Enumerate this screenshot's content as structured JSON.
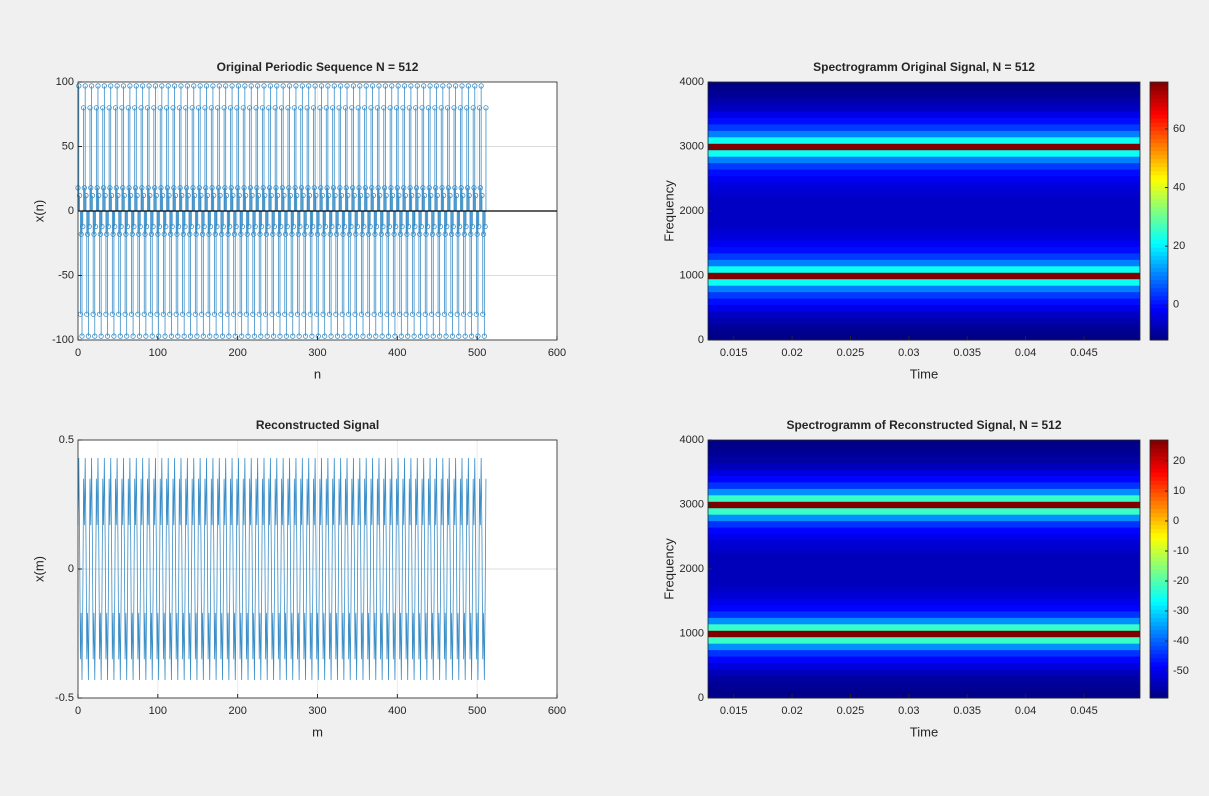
{
  "chart_data": [
    {
      "type": "stem",
      "title": "Original Periodic Sequence  N = 512",
      "xlabel": "n",
      "ylabel": "x(n)",
      "color": "#3a8ec8",
      "xlim": [
        0,
        600
      ],
      "xticks": [
        0,
        100,
        200,
        300,
        400,
        500,
        600
      ],
      "ylim": [
        -100,
        100
      ],
      "yticks": [
        -100,
        -50,
        0,
        50,
        100
      ],
      "grid": true,
      "values": [
        18,
        97,
        12,
        -80,
        -18,
        -97,
        -12,
        80,
        18,
        97,
        12,
        -80,
        -18,
        -97,
        -12,
        80,
        18,
        97,
        12,
        -80,
        -18,
        -97,
        -12,
        80,
        18,
        97,
        12,
        -80,
        -18,
        -97,
        -12,
        80,
        18,
        97,
        12,
        -80,
        -18,
        -97,
        -12,
        80,
        18,
        97,
        12,
        -80,
        -18,
        -97,
        -12,
        80,
        18,
        97,
        12,
        -80,
        -18,
        -97,
        -12,
        80,
        18,
        97,
        12,
        -80,
        -18,
        -97,
        -12,
        80,
        18,
        97,
        12,
        -80,
        -18,
        -97,
        -12,
        80,
        18,
        97,
        12,
        -80,
        -18,
        -97,
        -12,
        80,
        18,
        97,
        12,
        -80,
        -18,
        -97,
        -12,
        80,
        18,
        97,
        12,
        -80,
        -18,
        -97,
        -12,
        80,
        18,
        97,
        12,
        -80,
        -18,
        -97,
        -12,
        80,
        18,
        97,
        12,
        -80,
        -18,
        -97,
        -12,
        80,
        18,
        97,
        12,
        -80,
        -18,
        -97,
        -12,
        80,
        18,
        97,
        12,
        -80,
        -18,
        -97,
        -12,
        80,
        18,
        97,
        12,
        -80,
        -18,
        -97,
        -12,
        80,
        18,
        97,
        12,
        -80,
        -18,
        -97,
        -12,
        80,
        18,
        97,
        12,
        -80,
        -18,
        -97,
        -12,
        80,
        18,
        97,
        12,
        -80,
        -18,
        -97,
        -12,
        80,
        18,
        97,
        12,
        -80,
        -18,
        -97,
        -12,
        80,
        18,
        97,
        12,
        -80,
        -18,
        -97,
        -12,
        80,
        18,
        97,
        12,
        -80,
        -18,
        -97,
        -12,
        80,
        18,
        97,
        12,
        -80,
        -18,
        -97,
        -12,
        80,
        18,
        97,
        12,
        -80,
        -18,
        -97,
        -12,
        80,
        18,
        97,
        12,
        -80,
        -18,
        -97,
        -12,
        80,
        18,
        97,
        12,
        -80,
        -18,
        -97,
        -12,
        80,
        18,
        97,
        12,
        -80,
        -18,
        -97,
        -12,
        80,
        18,
        97,
        12,
        -80,
        -18,
        -97,
        -12,
        80,
        18,
        97,
        12,
        -80,
        -18,
        -97,
        -12,
        80,
        18,
        97,
        12,
        -80,
        -18,
        -97,
        -12,
        80,
        18,
        97,
        12,
        -80,
        -18,
        -97,
        -12,
        80,
        18,
        97,
        12,
        -80,
        -18,
        -97,
        -12,
        80,
        18,
        97,
        12,
        -80,
        -18,
        -97,
        -12,
        80,
        18,
        97,
        12,
        -80,
        -18,
        -97,
        -12,
        80,
        18,
        97,
        12,
        -80,
        -18,
        -97,
        -12,
        80,
        18,
        97,
        12,
        -80,
        -18,
        -97,
        -12,
        80,
        18,
        97,
        12,
        -80,
        -18,
        -97,
        -12,
        80,
        18,
        97,
        12,
        -80,
        -18,
        -97,
        -12,
        80,
        18,
        97,
        12,
        -80,
        -18,
        -97,
        -12,
        80,
        18,
        97,
        12,
        -80,
        -18,
        -97,
        -12,
        80,
        18,
        97,
        12,
        -80,
        -18,
        -97,
        -12,
        80,
        18,
        97,
        12,
        -80,
        -18,
        -97,
        -12,
        80,
        18,
        97,
        12,
        -80,
        -18,
        -97,
        -12,
        80,
        18,
        97,
        12,
        -80,
        -18,
        -97,
        -12,
        80,
        18,
        97,
        12,
        -80,
        -18,
        -97,
        -12,
        80,
        18,
        97,
        12,
        -80,
        -18,
        -97,
        -12,
        80,
        18,
        97,
        12,
        -80,
        -18,
        -97,
        -12,
        80,
        18,
        97,
        12,
        -80,
        -18,
        -97,
        -12,
        80,
        18,
        97,
        12,
        -80,
        -18,
        -97,
        -12,
        80,
        18,
        97,
        12,
        -80,
        -18,
        -97,
        -12,
        80,
        18,
        97,
        12,
        -80,
        -18,
        -97,
        -12,
        80,
        18,
        97,
        12,
        -80,
        -18,
        -97,
        -12,
        80,
        18,
        97,
        12,
        -80,
        -18,
        -97,
        -12,
        80,
        18,
        97,
        12,
        -80,
        -18,
        -97,
        -12,
        80,
        18,
        97,
        12,
        -80,
        -18,
        -97,
        -12,
        80,
        18,
        97,
        12,
        -80,
        -18,
        -97,
        -12,
        80,
        18,
        97,
        12,
        -80,
        -18,
        -97,
        -12,
        80,
        18,
        97,
        12,
        -80,
        -18,
        -97,
        -12,
        80,
        18,
        97,
        12,
        -80,
        -18,
        -97,
        -12,
        80,
        18,
        97,
        12,
        -80,
        -18,
        -97,
        -12,
        80,
        18,
        97,
        12,
        -80,
        -18,
        -97,
        -12,
        80,
        18,
        97,
        12,
        -80,
        -18,
        -97,
        -12,
        80,
        18,
        97,
        12,
        -80,
        -18,
        -97,
        -12,
        80
      ]
    },
    {
      "type": "heatmap",
      "title": "Spectrogramm Original Signal, N = 512",
      "xlabel": "Time",
      "ylabel": "Frequency",
      "xlim": [
        0.0128,
        0.0498
      ],
      "xticks": [
        0.015,
        0.02,
        0.025,
        0.03,
        0.035,
        0.04,
        0.045
      ],
      "ylim": [
        0,
        4000
      ],
      "yticks": [
        0,
        1000,
        2000,
        3000,
        4000
      ],
      "clim": [
        -12,
        76
      ],
      "cticks": [
        0,
        20,
        40,
        60
      ],
      "colormap": "jet",
      "y": [
        0,
        100,
        200,
        300,
        400,
        500,
        600,
        700,
        800,
        900,
        1000,
        1100,
        1200,
        1300,
        1400,
        1500,
        1600,
        1700,
        1800,
        1900,
        2000,
        2100,
        2200,
        2300,
        2400,
        2500,
        2600,
        2700,
        2800,
        2900,
        3000,
        3100,
        3200,
        3300,
        3400,
        3500,
        3600,
        3700,
        3800,
        3900,
        4000
      ],
      "values": [
        -12,
        -11,
        -10,
        -8,
        -6,
        -3,
        0,
        4,
        10,
        22,
        76,
        22,
        10,
        4,
        0,
        -2,
        -4,
        -5,
        -6,
        -6,
        -6,
        -6,
        -6,
        -5,
        -4,
        -2,
        0,
        4,
        10,
        22,
        76,
        22,
        10,
        4,
        0,
        -3,
        -6,
        -8,
        -10,
        -11,
        -12
      ]
    },
    {
      "type": "line",
      "title": "Reconstructed Signal",
      "xlabel": "m",
      "ylabel": "x(m)",
      "color": "#3a8ec8",
      "xlim": [
        0,
        600
      ],
      "xticks": [
        0,
        100,
        200,
        300,
        400,
        500,
        600
      ],
      "ylim": [
        -0.5,
        0.5
      ],
      "yticks": [
        -0.5,
        0,
        0.5
      ],
      "grid": true,
      "values": [
        0.17,
        0.43,
        0.12,
        -0.35,
        -0.17,
        -0.43,
        -0.12,
        0.35,
        0.17,
        0.43,
        0.12,
        -0.35,
        -0.17,
        -0.43,
        -0.12,
        0.35,
        0.17,
        0.43,
        0.12,
        -0.35,
        -0.17,
        -0.43,
        -0.12,
        0.35,
        0.17,
        0.43,
        0.12,
        -0.35,
        -0.17,
        -0.43,
        -0.12,
        0.35,
        0.17,
        0.43,
        0.12,
        -0.35,
        -0.17,
        -0.43,
        -0.12,
        0.35,
        0.17,
        0.43,
        0.12,
        -0.35,
        -0.17,
        -0.43,
        -0.12,
        0.35,
        0.17,
        0.43,
        0.12,
        -0.35,
        -0.17,
        -0.43,
        -0.12,
        0.35,
        0.17,
        0.43,
        0.12,
        -0.35,
        -0.17,
        -0.43,
        -0.12,
        0.35,
        0.17,
        0.43,
        0.12,
        -0.35,
        -0.17,
        -0.43,
        -0.12,
        0.35,
        0.17,
        0.43,
        0.12,
        -0.35,
        -0.17,
        -0.43,
        -0.12,
        0.35,
        0.17,
        0.43,
        0.12,
        -0.35,
        -0.17,
        -0.43,
        -0.12,
        0.35,
        0.17,
        0.43,
        0.12,
        -0.35,
        -0.17,
        -0.43,
        -0.12,
        0.35,
        0.17,
        0.43,
        0.12,
        -0.35,
        -0.17,
        -0.43,
        -0.12,
        0.35,
        0.17,
        0.43,
        0.12,
        -0.35,
        -0.17,
        -0.43,
        -0.12,
        0.35,
        0.17,
        0.43,
        0.12,
        -0.35,
        -0.17,
        -0.43,
        -0.12,
        0.35,
        0.17,
        0.43,
        0.12,
        -0.35,
        -0.17,
        -0.43,
        -0.12,
        0.35,
        0.17,
        0.43,
        0.12,
        -0.35,
        -0.17,
        -0.43,
        -0.12,
        0.35,
        0.17,
        0.43,
        0.12,
        -0.35,
        -0.17,
        -0.43,
        -0.12,
        0.35,
        0.17,
        0.43,
        0.12,
        -0.35,
        -0.17,
        -0.43,
        -0.12,
        0.35,
        0.17,
        0.43,
        0.12,
        -0.35,
        -0.17,
        -0.43,
        -0.12,
        0.35,
        0.17,
        0.43,
        0.12,
        -0.35,
        -0.17,
        -0.43,
        -0.12,
        0.35,
        0.17,
        0.43,
        0.12,
        -0.35,
        -0.17,
        -0.43,
        -0.12,
        0.35,
        0.17,
        0.43,
        0.12,
        -0.35,
        -0.17,
        -0.43,
        -0.12,
        0.35,
        0.17,
        0.43,
        0.12,
        -0.35,
        -0.17,
        -0.43,
        -0.12,
        0.35,
        0.17,
        0.43,
        0.12,
        -0.35,
        -0.17,
        -0.43,
        -0.12,
        0.35,
        0.17,
        0.43,
        0.12,
        -0.35,
        -0.17,
        -0.43,
        -0.12,
        0.35,
        0.17,
        0.43,
        0.12,
        -0.35,
        -0.17,
        -0.43,
        -0.12,
        0.35,
        0.17,
        0.43,
        0.12,
        -0.35,
        -0.17,
        -0.43,
        -0.12,
        0.35,
        0.17,
        0.43,
        0.12,
        -0.35,
        -0.17,
        -0.43,
        -0.12,
        0.35,
        0.17,
        0.43,
        0.12,
        -0.35,
        -0.17,
        -0.43,
        -0.12,
        0.35,
        0.17,
        0.43,
        0.12,
        -0.35,
        -0.17,
        -0.43,
        -0.12,
        0.35,
        0.17,
        0.43,
        0.12,
        -0.35,
        -0.17,
        -0.43,
        -0.12,
        0.35,
        0.17,
        0.43,
        0.12,
        -0.35,
        -0.17,
        -0.43,
        -0.12,
        0.35,
        0.17,
        0.43,
        0.12,
        -0.35,
        -0.17,
        -0.43,
        -0.12,
        0.35,
        0.17,
        0.43,
        0.12,
        -0.35,
        -0.17,
        -0.43,
        -0.12,
        0.35,
        0.17,
        0.43,
        0.12,
        -0.35,
        -0.17,
        -0.43,
        -0.12,
        0.35,
        0.17,
        0.43,
        0.12,
        -0.35,
        -0.17,
        -0.43,
        -0.12,
        0.35,
        0.17,
        0.43,
        0.12,
        -0.35,
        -0.17,
        -0.43,
        -0.12,
        0.35,
        0.17,
        0.43,
        0.12,
        -0.35,
        -0.17,
        -0.43,
        -0.12,
        0.35,
        0.17,
        0.43,
        0.12,
        -0.35,
        -0.17,
        -0.43,
        -0.12,
        0.35,
        0.17,
        0.43,
        0.12,
        -0.35,
        -0.17,
        -0.43,
        -0.12,
        0.35,
        0.17,
        0.43,
        0.12,
        -0.35,
        -0.17,
        -0.43,
        -0.12,
        0.35,
        0.17,
        0.43,
        0.12,
        -0.35,
        -0.17,
        -0.43,
        -0.12,
        0.35,
        0.17,
        0.43,
        0.12,
        -0.35,
        -0.17,
        -0.43,
        -0.12,
        0.35,
        0.17,
        0.43,
        0.12,
        -0.35,
        -0.17,
        -0.43,
        -0.12,
        0.35,
        0.17,
        0.43,
        0.12,
        -0.35,
        -0.17,
        -0.43,
        -0.12,
        0.35,
        0.17,
        0.43,
        0.12,
        -0.35,
        -0.17,
        -0.43,
        -0.12,
        0.35,
        0.17,
        0.43,
        0.12,
        -0.35,
        -0.17,
        -0.43,
        -0.12,
        0.35,
        0.17,
        0.43,
        0.12,
        -0.35,
        -0.17,
        -0.43,
        -0.12,
        0.35,
        0.17,
        0.43,
        0.12,
        -0.35,
        -0.17,
        -0.43,
        -0.12,
        0.35,
        0.17,
        0.43,
        0.12,
        -0.35,
        -0.17,
        -0.43,
        -0.12,
        0.35,
        0.17,
        0.43,
        0.12,
        -0.35,
        -0.17,
        -0.43,
        -0.12,
        0.35,
        0.17,
        0.43,
        0.12,
        -0.35,
        -0.17,
        -0.43,
        -0.12,
        0.35,
        0.17,
        0.43,
        0.12,
        -0.35,
        -0.17,
        -0.43,
        -0.12,
        0.35,
        0.17,
        0.43,
        0.12,
        -0.35,
        -0.17,
        -0.43,
        -0.12,
        0.35,
        0.17,
        0.43,
        0.12,
        -0.35,
        -0.17,
        -0.43,
        -0.12,
        0.35,
        0.17,
        0.43,
        0.12,
        -0.35,
        -0.17,
        -0.43,
        -0.12,
        0.35,
        0.17,
        0.43,
        0.12,
        -0.35,
        -0.17,
        -0.43,
        -0.12,
        0.35,
        0.17,
        0.43,
        0.12,
        -0.35,
        -0.17,
        -0.43,
        -0.12,
        0.35,
        0.17,
        0.43,
        0.12,
        -0.35,
        -0.17,
        -0.43,
        -0.12,
        0.35,
        0.17,
        0.43,
        0.12,
        -0.35,
        -0.17,
        -0.43,
        -0.12,
        0.35,
        0.17,
        0.43,
        0.12,
        -0.35,
        -0.17,
        -0.43,
        -0.12,
        0.35,
        0.17,
        0.43,
        0.12,
        -0.35,
        -0.17,
        -0.43,
        -0.12,
        0.35,
        0.17,
        0.43,
        0.12,
        -0.35,
        -0.17,
        -0.43,
        -0.12,
        0.35
      ]
    },
    {
      "type": "heatmap",
      "title": "Spectrogramm of Reconstructed  Signal, N = 512",
      "xlabel": "Time",
      "ylabel": "Frequency",
      "xlim": [
        0.0128,
        0.0498
      ],
      "xticks": [
        0.015,
        0.02,
        0.025,
        0.03,
        0.035,
        0.04,
        0.045
      ],
      "ylim": [
        0,
        4000
      ],
      "yticks": [
        0,
        1000,
        2000,
        3000,
        4000
      ],
      "clim": [
        -59,
        27
      ],
      "cticks": [
        -50,
        -40,
        -30,
        -20,
        -10,
        0,
        10,
        20
      ],
      "colormap": "jet",
      "y": [
        0,
        100,
        200,
        300,
        400,
        500,
        600,
        700,
        800,
        900,
        1000,
        1100,
        1200,
        1300,
        1400,
        1500,
        1600,
        1700,
        1800,
        1900,
        2000,
        2100,
        2200,
        2300,
        2400,
        2500,
        2600,
        2700,
        2800,
        2900,
        3000,
        3100,
        3200,
        3300,
        3400,
        3500,
        3600,
        3700,
        3800,
        3900,
        4000
      ],
      "values": [
        -58,
        -58,
        -57,
        -56,
        -54,
        -51,
        -48,
        -44,
        -36,
        -22,
        27,
        -22,
        -36,
        -44,
        -48,
        -50,
        -52,
        -53,
        -54,
        -54,
        -54,
        -54,
        -54,
        -53,
        -52,
        -50,
        -48,
        -44,
        -36,
        -22,
        27,
        -22,
        -36,
        -44,
        -48,
        -51,
        -54,
        -56,
        -57,
        -58,
        -58
      ]
    }
  ]
}
